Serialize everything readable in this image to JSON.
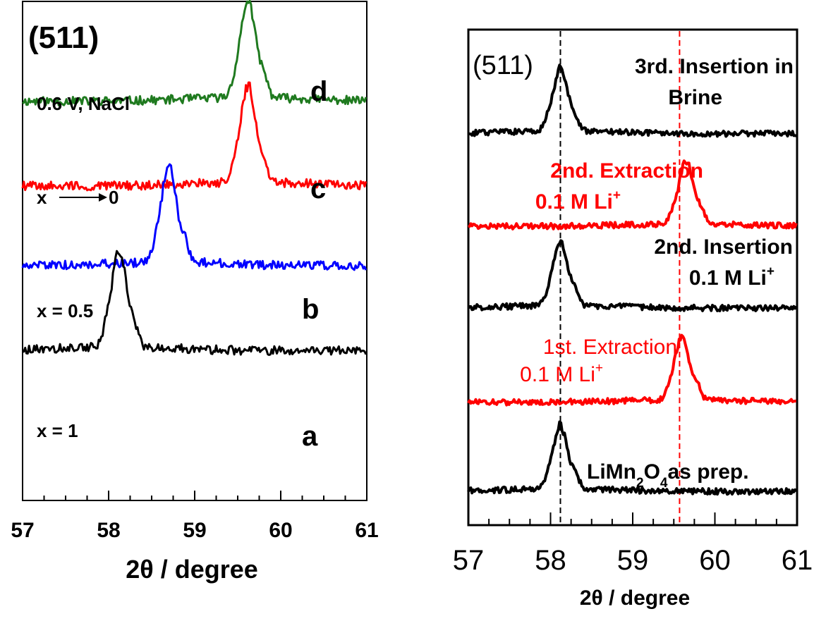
{
  "chart_data": [
    {
      "type": "line",
      "panel_label": "(511)",
      "xlabel": "2θ / degree",
      "xlim": [
        57,
        61
      ],
      "xticks": [
        "57",
        "58",
        "59",
        "60",
        "61"
      ],
      "xminor_step": 0.25,
      "colors": {
        "d": "#1f7a1f",
        "c": "#ff0000",
        "b": "#0000ff",
        "a": "#000000"
      },
      "series": [
        {
          "key": "d",
          "letter": "d",
          "label": "0.6 V, NaCl",
          "peak": 59.62,
          "baseline": 0.8,
          "height": 0.95
        },
        {
          "key": "c",
          "letter": "c",
          "label": "x",
          "label_suffix": "0",
          "peak": 59.62,
          "baseline": 0.63,
          "height": 0.95
        },
        {
          "key": "b",
          "letter": "b",
          "label": "x = 0.5",
          "peak": 58.7,
          "baseline": 0.47,
          "height": 0.95
        },
        {
          "key": "a",
          "letter": "a",
          "label": "x = 1",
          "peak": 58.12,
          "baseline": 0.3,
          "height": 0.95
        }
      ]
    },
    {
      "type": "line",
      "panel_label": "(511)",
      "xlabel": "2θ / degree",
      "xlim": [
        57,
        61
      ],
      "xticks": [
        "57",
        "58",
        "59",
        "60",
        "61"
      ],
      "xminor_step": 0.25,
      "ref_lines": [
        {
          "x": 58.12,
          "color": "#000000"
        },
        {
          "x": 59.57,
          "color": "#ff0000"
        }
      ],
      "series": [
        {
          "key": "r5",
          "label_lines": [
            "3rd. Insertion in",
            "Brine"
          ],
          "color": "#000000",
          "peak": 58.12,
          "label_bold": true
        },
        {
          "key": "r4",
          "label_lines": [
            "2nd. Extraction",
            "0.1 M Li",
            "+"
          ],
          "color": "#ff0000",
          "peak": 59.65,
          "label_bold": true
        },
        {
          "key": "r3",
          "label_lines": [
            "2nd. Insertion",
            "0.1 M Li",
            "+"
          ],
          "color": "#000000",
          "peak": 58.12,
          "label_bold": true
        },
        {
          "key": "r2",
          "label_lines": [
            "1st. Extraction",
            "0.1 M Li",
            "+"
          ],
          "color": "#ff0000",
          "peak": 59.6,
          "label_bold": false
        },
        {
          "key": "r1",
          "label_parts": [
            "LiMn",
            "2",
            "O",
            "4",
            "as prep."
          ],
          "color": "#000000",
          "peak": 58.12,
          "label_bold": true
        }
      ]
    }
  ]
}
